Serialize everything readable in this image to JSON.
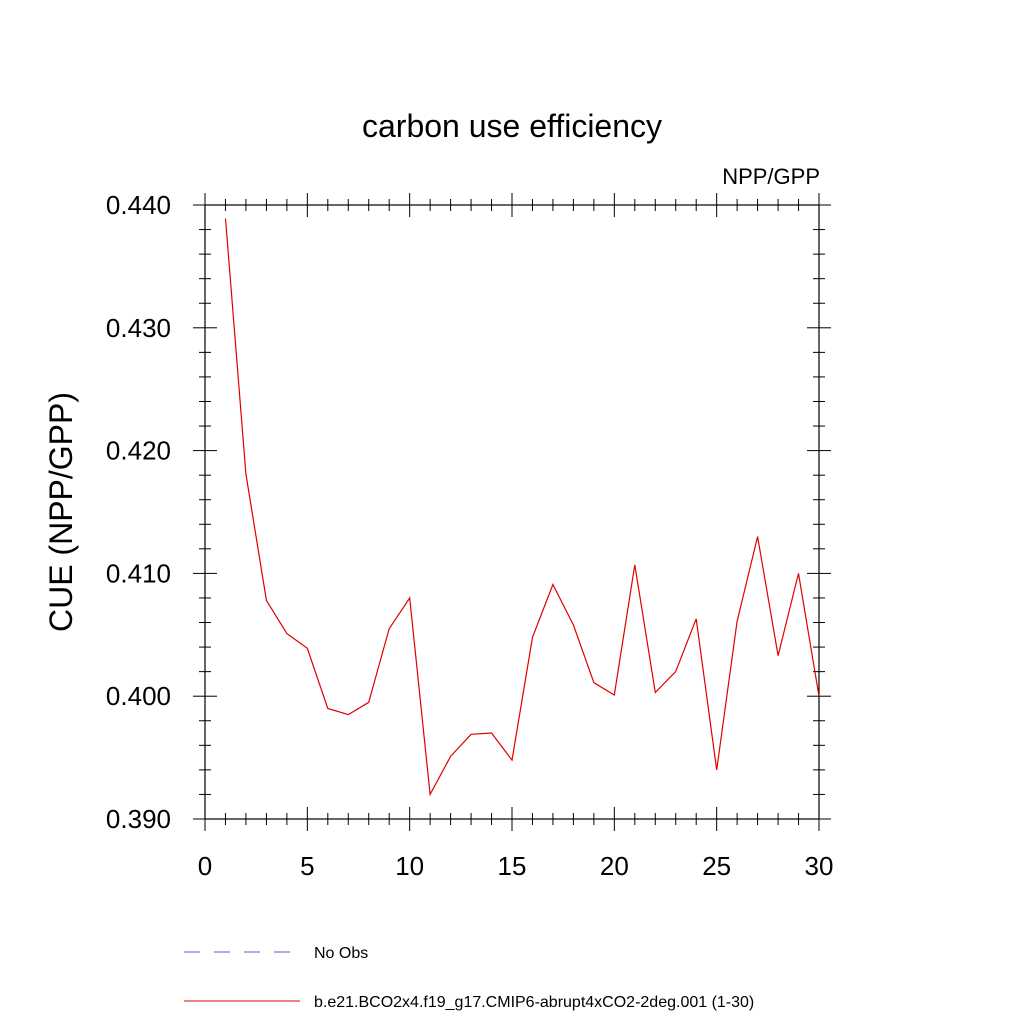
{
  "chart_data": {
    "type": "line",
    "title": "carbon use efficiency",
    "subtitle": "NPP/GPP",
    "xlabel": "",
    "ylabel": "CUE  (NPP/GPP)",
    "xlim": [
      0,
      30
    ],
    "ylim": [
      0.39,
      0.44
    ],
    "x_ticks": [
      0,
      5,
      10,
      15,
      20,
      25,
      30
    ],
    "x_tick_labels": [
      "0",
      "5",
      "10",
      "15",
      "20",
      "25",
      "30"
    ],
    "y_ticks": [
      0.39,
      0.4,
      0.41,
      0.42,
      0.43,
      0.44
    ],
    "y_tick_labels": [
      "0.390",
      "0.400",
      "0.410",
      "0.420",
      "0.430",
      "0.440"
    ],
    "grid": false,
    "legend_position": "bottom",
    "series": [
      {
        "name": "No Obs",
        "color": "#5b5bd6",
        "dash": true,
        "x": [],
        "y": []
      },
      {
        "name": "b.e21.BCO2x4.f19_g17.CMIP6-abrupt4xCO2-2deg.001 (1-30)",
        "color": "#e00000",
        "dash": false,
        "x": [
          1,
          2,
          3,
          4,
          5,
          6,
          7,
          8,
          9,
          10,
          11,
          12,
          13,
          14,
          15,
          16,
          17,
          18,
          19,
          20,
          21,
          22,
          23,
          24,
          25,
          26,
          27,
          28,
          29,
          30
        ],
        "y": [
          0.4389,
          0.4181,
          0.4078,
          0.4051,
          0.4039,
          0.399,
          0.3985,
          0.3995,
          0.4055,
          0.408,
          0.392,
          0.3951,
          0.3969,
          0.397,
          0.3948,
          0.4048,
          0.4091,
          0.4058,
          0.4011,
          0.4001,
          0.4107,
          0.4003,
          0.402,
          0.4063,
          0.394,
          0.4061,
          0.413,
          0.4033,
          0.41,
          0.4
        ]
      }
    ]
  }
}
